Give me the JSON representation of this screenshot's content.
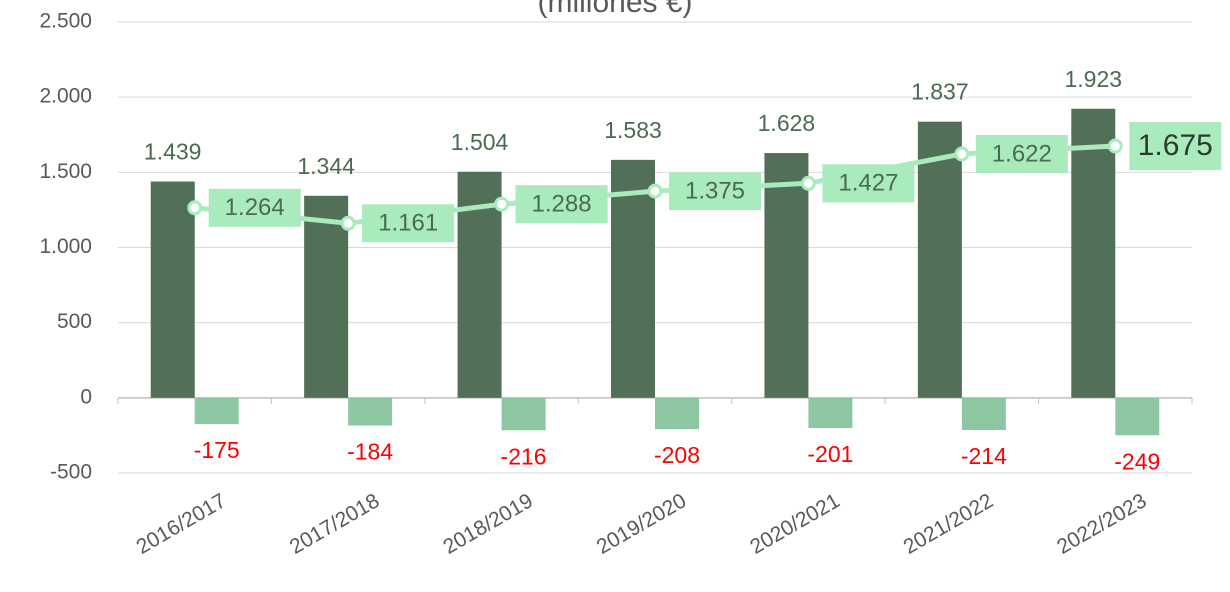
{
  "chart_data": {
    "type": "bar",
    "subtitle": "(millones €)",
    "categories": [
      "2016/2017",
      "2017/2018",
      "2018/2019",
      "2019/2020",
      "2020/2021",
      "2021/2022",
      "2022/2023"
    ],
    "series": [
      {
        "type": "bar",
        "color": "#526f58",
        "values": [
          1439,
          1344,
          1504,
          1583,
          1628,
          1837,
          1923
        ],
        "value_labels": [
          "1.439",
          "1.344",
          "1.504",
          "1.583",
          "1.628",
          "1.837",
          "1.923"
        ]
      },
      {
        "type": "bar",
        "color": "#8cc7a2",
        "values": [
          -175,
          -184,
          -216,
          -208,
          -201,
          -214,
          -249
        ]
      },
      {
        "type": "line",
        "color": "#a9ebbc",
        "values": [
          1264,
          1161,
          1288,
          1375,
          1427,
          1622,
          1675
        ],
        "value_labels": [
          "1.264",
          "1.161",
          "1.288",
          "1.375",
          "1.427",
          "1.622",
          "1.675"
        ]
      }
    ],
    "ylim": [
      -500,
      2500
    ],
    "yticks": [
      -500,
      0,
      500,
      {
        "value": 1000,
        "label": "1.000"
      },
      {
        "value": 1500,
        "label": "1.500"
      },
      {
        "value": 2000,
        "label": "2.000"
      },
      {
        "value": 2500,
        "label": "2.500"
      }
    ],
    "grid": true
  }
}
